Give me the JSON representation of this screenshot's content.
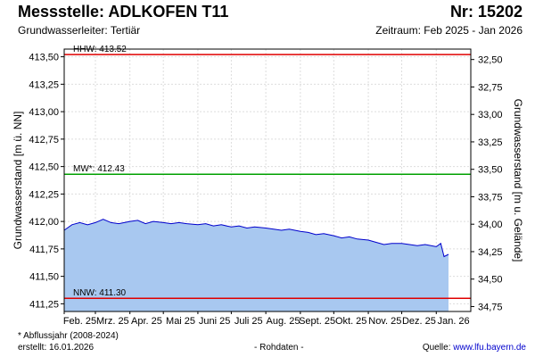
{
  "header": {
    "title": "Messstelle: ADLKOFEN T11",
    "nr": "Nr: 15202",
    "subtitle": "Grundwasserleiter: Tertiär",
    "period": "Zeitraum: Feb 2025 - Jan 2026"
  },
  "footer": {
    "note": "* Abflussjahr (2008-2024)",
    "created": "erstellt:  16.01.2026",
    "rawdata": "- Rohdaten -",
    "source_label": "Quelle: ",
    "source_url": "www.lfu.bayern.de"
  },
  "chart_data": {
    "type": "area",
    "ylabel_left": "Grundwasserstand [m ü. NN]",
    "ylabel_right": "Grundwasserstand [m u. Gelände]",
    "ylim": [
      411.18,
      413.57
    ],
    "left_ticks": [
      {
        "value": 413.5,
        "label": "413,50"
      },
      {
        "value": 413.25,
        "label": "413,25"
      },
      {
        "value": 413.0,
        "label": "413,00"
      },
      {
        "value": 412.75,
        "label": "412,75"
      },
      {
        "value": 412.5,
        "label": "412,50"
      },
      {
        "value": 412.25,
        "label": "412,25"
      },
      {
        "value": 412.0,
        "label": "412,00"
      },
      {
        "value": 411.75,
        "label": "411,75"
      },
      {
        "value": 411.5,
        "label": "411,50"
      },
      {
        "value": 411.25,
        "label": "411,25"
      }
    ],
    "right_ticks": [
      {
        "value": 413.475,
        "label": "32,50"
      },
      {
        "value": 413.225,
        "label": "32,75"
      },
      {
        "value": 412.975,
        "label": "33,00"
      },
      {
        "value": 412.725,
        "label": "33,25"
      },
      {
        "value": 412.475,
        "label": "33,50"
      },
      {
        "value": 412.225,
        "label": "33,75"
      },
      {
        "value": 411.975,
        "label": "34,00"
      },
      {
        "value": 411.725,
        "label": "34,25"
      },
      {
        "value": 411.475,
        "label": "34,50"
      },
      {
        "value": 411.225,
        "label": "34,75"
      }
    ],
    "x_labels": [
      "Feb. 25",
      "Mrz. 25",
      "Apr. 25",
      "Mai 25",
      "Juni 25",
      "Juli 25",
      "Aug. 25",
      "Sept. 25",
      "Okt. 25",
      "Nov. 25",
      "Dez. 25",
      "Jan. 26"
    ],
    "reference_lines": [
      {
        "name": "HHW",
        "label": "HHW: 413.52",
        "value": 413.52,
        "color": "#e00000"
      },
      {
        "name": "MW",
        "label": "MW*: 412.43",
        "value": 412.43,
        "color": "#00a000"
      },
      {
        "name": "NNW",
        "label": "NNW: 411.30",
        "value": 411.3,
        "color": "#e00000"
      }
    ],
    "series": [
      {
        "x": [
          "2025-02-01",
          "2025-02-08",
          "2025-02-15",
          "2025-02-22",
          "2025-03-01",
          "2025-03-08",
          "2025-03-15",
          "2025-03-22",
          "2025-04-01",
          "2025-04-08",
          "2025-04-15",
          "2025-04-22",
          "2025-05-01",
          "2025-05-08",
          "2025-05-15",
          "2025-05-22",
          "2025-06-01",
          "2025-06-08",
          "2025-06-15",
          "2025-06-22",
          "2025-07-01",
          "2025-07-08",
          "2025-07-15",
          "2025-07-22",
          "2025-08-01",
          "2025-08-08",
          "2025-08-15",
          "2025-08-22",
          "2025-09-01",
          "2025-09-08",
          "2025-09-15",
          "2025-09-22",
          "2025-10-01",
          "2025-10-08",
          "2025-10-15",
          "2025-10-22",
          "2025-11-01",
          "2025-11-08",
          "2025-11-15",
          "2025-11-22",
          "2025-12-01",
          "2025-12-08",
          "2025-12-15",
          "2025-12-22",
          "2026-01-01",
          "2026-01-05",
          "2026-01-08",
          "2026-01-12"
        ],
        "values": [
          411.92,
          411.97,
          411.99,
          411.97,
          411.99,
          412.02,
          411.99,
          411.98,
          412.0,
          412.01,
          411.98,
          412.0,
          411.99,
          411.98,
          411.99,
          411.98,
          411.97,
          411.98,
          411.96,
          411.97,
          411.95,
          411.96,
          411.94,
          411.95,
          411.94,
          411.93,
          411.92,
          411.93,
          411.91,
          411.9,
          411.88,
          411.89,
          411.87,
          411.85,
          411.86,
          411.84,
          411.83,
          411.81,
          411.79,
          411.8,
          411.8,
          411.79,
          411.78,
          411.79,
          411.77,
          411.8,
          411.68,
          411.7
        ],
        "color": "#0000cc",
        "fill": "#a8c8f0"
      }
    ],
    "grid": true
  }
}
